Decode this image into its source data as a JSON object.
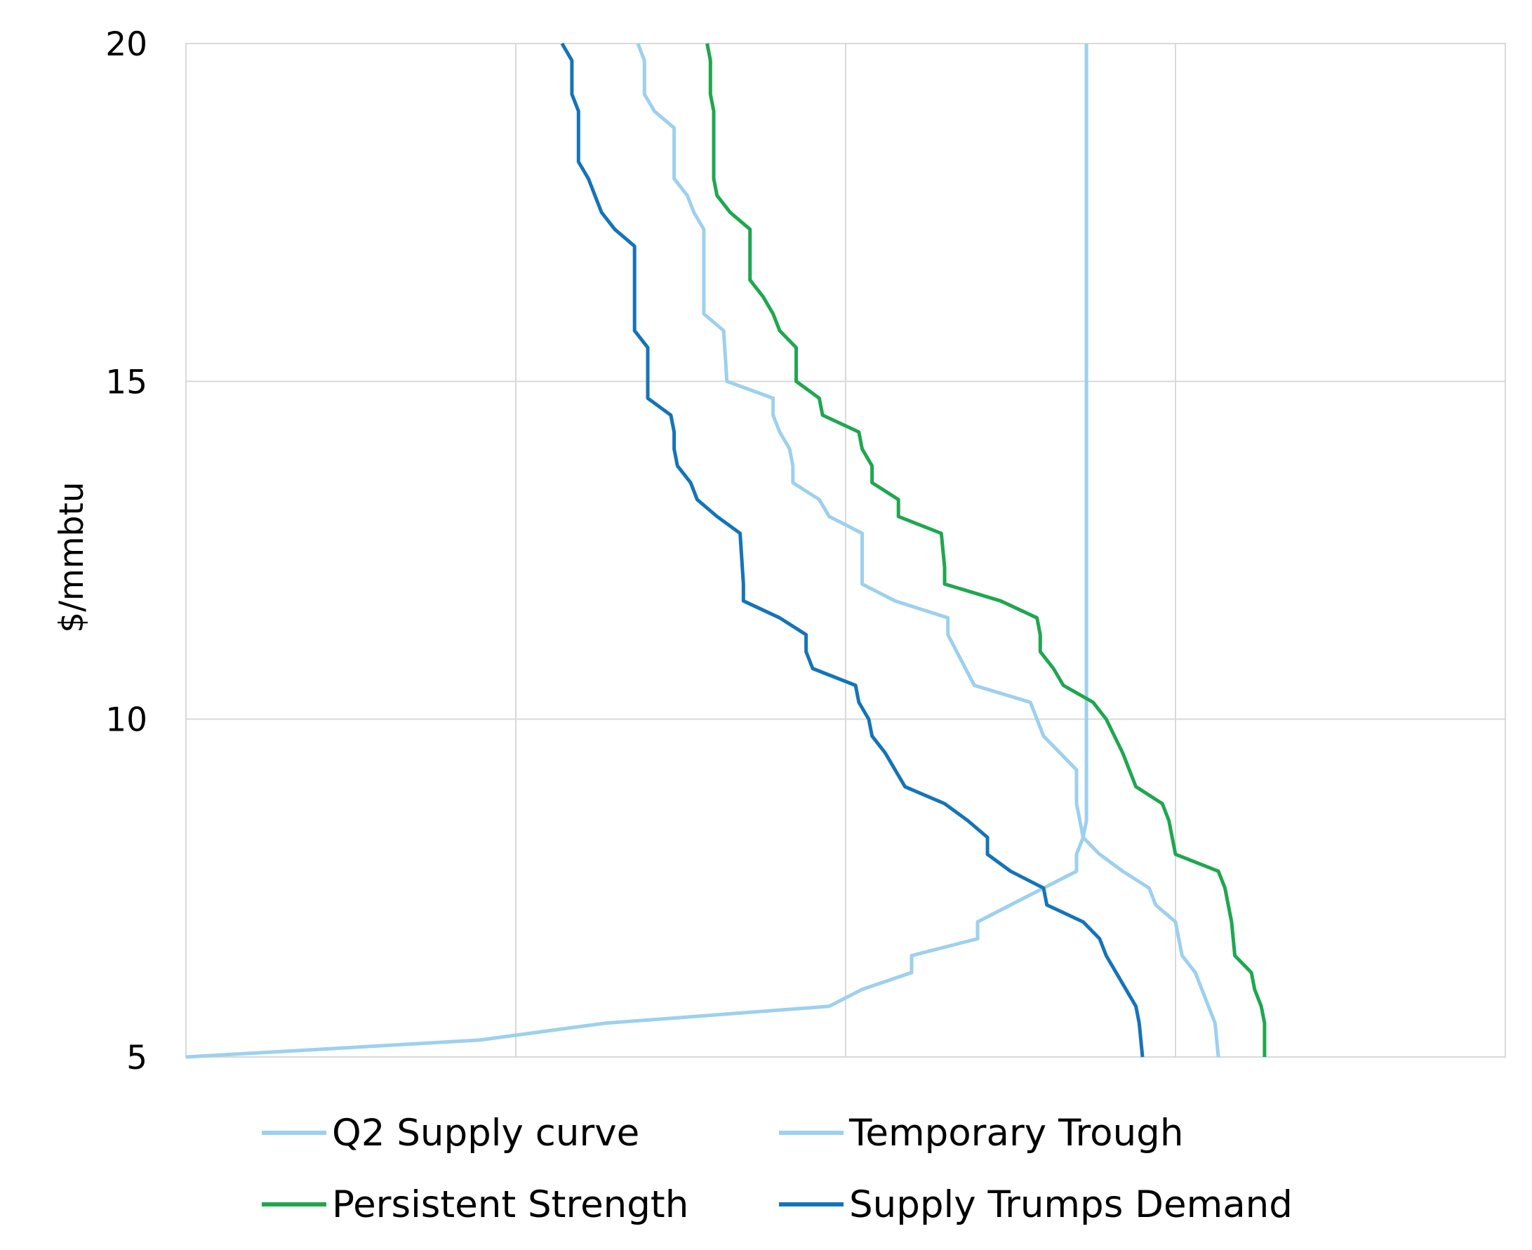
{
  "chart_data": {
    "type": "line",
    "title": "",
    "xlabel": "",
    "ylabel": "$/mmbtu",
    "ylim": [
      5,
      20
    ],
    "y_ticks": [
      "5",
      "10",
      "15",
      "20"
    ],
    "x_range": [
      0,
      4
    ],
    "x_ticks_labeled": false,
    "grid": true,
    "legend_position": "bottom",
    "series": [
      {
        "name": "Q2 Supply curve",
        "color": "#9DD0EE",
        "points": [
          [
            0.0,
            5.0
          ],
          [
            0.89,
            5.25
          ],
          [
            1.27,
            5.5
          ],
          [
            1.95,
            5.75
          ],
          [
            2.05,
            6.0
          ],
          [
            2.2,
            6.25
          ],
          [
            2.2,
            6.5
          ],
          [
            2.4,
            6.75
          ],
          [
            2.4,
            7.0
          ],
          [
            2.5,
            7.25
          ],
          [
            2.6,
            7.5
          ],
          [
            2.7,
            7.75
          ],
          [
            2.7,
            8.0
          ],
          [
            2.72,
            8.25
          ],
          [
            2.73,
            8.5
          ],
          [
            2.73,
            20.0
          ]
        ]
      },
      {
        "name": "Temporary Trough",
        "color": "#9DD0EE",
        "points": [
          [
            3.13,
            5.0
          ],
          [
            3.12,
            5.5
          ],
          [
            3.1,
            5.75
          ],
          [
            3.08,
            6.0
          ],
          [
            3.06,
            6.25
          ],
          [
            3.02,
            6.5
          ],
          [
            3.0,
            7.0
          ],
          [
            2.94,
            7.25
          ],
          [
            2.92,
            7.5
          ],
          [
            2.84,
            7.75
          ],
          [
            2.77,
            8.0
          ],
          [
            2.72,
            8.25
          ],
          [
            2.7,
            8.75
          ],
          [
            2.7,
            9.25
          ],
          [
            2.6,
            9.75
          ],
          [
            2.56,
            10.25
          ],
          [
            2.39,
            10.5
          ],
          [
            2.31,
            11.25
          ],
          [
            2.31,
            11.5
          ],
          [
            2.15,
            11.75
          ],
          [
            2.05,
            12.0
          ],
          [
            2.05,
            12.75
          ],
          [
            1.95,
            13.0
          ],
          [
            1.92,
            13.25
          ],
          [
            1.84,
            13.5
          ],
          [
            1.84,
            13.75
          ],
          [
            1.83,
            14.0
          ],
          [
            1.8,
            14.25
          ],
          [
            1.78,
            14.5
          ],
          [
            1.78,
            14.75
          ],
          [
            1.64,
            15.0
          ],
          [
            1.63,
            15.75
          ],
          [
            1.57,
            16.0
          ],
          [
            1.57,
            17.25
          ],
          [
            1.54,
            17.5
          ],
          [
            1.52,
            17.75
          ],
          [
            1.48,
            18.0
          ],
          [
            1.48,
            18.75
          ],
          [
            1.42,
            19.0
          ],
          [
            1.39,
            19.25
          ],
          [
            1.39,
            19.75
          ],
          [
            1.37,
            20.0
          ]
        ]
      },
      {
        "name": "Persistent Strength",
        "color": "#1FA74F",
        "points": [
          [
            3.27,
            5.0
          ],
          [
            3.27,
            5.5
          ],
          [
            3.26,
            5.75
          ],
          [
            3.24,
            6.0
          ],
          [
            3.23,
            6.25
          ],
          [
            3.18,
            6.5
          ],
          [
            3.17,
            7.0
          ],
          [
            3.16,
            7.25
          ],
          [
            3.15,
            7.5
          ],
          [
            3.13,
            7.75
          ],
          [
            3.0,
            8.0
          ],
          [
            2.99,
            8.25
          ],
          [
            2.98,
            8.5
          ],
          [
            2.96,
            8.75
          ],
          [
            2.88,
            9.0
          ],
          [
            2.86,
            9.25
          ],
          [
            2.84,
            9.5
          ],
          [
            2.79,
            10.0
          ],
          [
            2.75,
            10.25
          ],
          [
            2.66,
            10.5
          ],
          [
            2.63,
            10.75
          ],
          [
            2.59,
            11.0
          ],
          [
            2.59,
            11.25
          ],
          [
            2.58,
            11.5
          ],
          [
            2.47,
            11.75
          ],
          [
            2.3,
            12.0
          ],
          [
            2.3,
            12.25
          ],
          [
            2.29,
            12.75
          ],
          [
            2.16,
            13.0
          ],
          [
            2.16,
            13.25
          ],
          [
            2.08,
            13.5
          ],
          [
            2.08,
            13.75
          ],
          [
            2.05,
            14.0
          ],
          [
            2.04,
            14.25
          ],
          [
            1.93,
            14.5
          ],
          [
            1.92,
            14.75
          ],
          [
            1.85,
            15.0
          ],
          [
            1.85,
            15.5
          ],
          [
            1.8,
            15.75
          ],
          [
            1.78,
            16.0
          ],
          [
            1.75,
            16.25
          ],
          [
            1.71,
            16.5
          ],
          [
            1.71,
            17.25
          ],
          [
            1.65,
            17.5
          ],
          [
            1.61,
            17.75
          ],
          [
            1.6,
            18.0
          ],
          [
            1.6,
            19.0
          ],
          [
            1.59,
            19.25
          ],
          [
            1.59,
            19.75
          ],
          [
            1.58,
            20.0
          ]
        ]
      },
      {
        "name": "Supply Trumps Demand",
        "color": "#1474B9",
        "points": [
          [
            2.9,
            5.0
          ],
          [
            2.89,
            5.5
          ],
          [
            2.88,
            5.75
          ],
          [
            2.85,
            6.0
          ],
          [
            2.82,
            6.25
          ],
          [
            2.79,
            6.5
          ],
          [
            2.77,
            6.75
          ],
          [
            2.72,
            7.0
          ],
          [
            2.61,
            7.25
          ],
          [
            2.6,
            7.5
          ],
          [
            2.5,
            7.75
          ],
          [
            2.43,
            8.0
          ],
          [
            2.43,
            8.25
          ],
          [
            2.37,
            8.5
          ],
          [
            2.3,
            8.75
          ],
          [
            2.18,
            9.0
          ],
          [
            2.15,
            9.25
          ],
          [
            2.12,
            9.5
          ],
          [
            2.08,
            9.75
          ],
          [
            2.07,
            10.0
          ],
          [
            2.04,
            10.25
          ],
          [
            2.03,
            10.5
          ],
          [
            1.9,
            10.75
          ],
          [
            1.88,
            11.0
          ],
          [
            1.88,
            11.25
          ],
          [
            1.8,
            11.5
          ],
          [
            1.69,
            11.75
          ],
          [
            1.69,
            12.0
          ],
          [
            1.68,
            12.75
          ],
          [
            1.61,
            13.0
          ],
          [
            1.55,
            13.25
          ],
          [
            1.53,
            13.5
          ],
          [
            1.49,
            13.75
          ],
          [
            1.48,
            14.0
          ],
          [
            1.48,
            14.25
          ],
          [
            1.47,
            14.5
          ],
          [
            1.4,
            14.75
          ],
          [
            1.4,
            15.0
          ],
          [
            1.4,
            15.5
          ],
          [
            1.36,
            15.75
          ],
          [
            1.36,
            16.0
          ],
          [
            1.36,
            17.0
          ],
          [
            1.3,
            17.25
          ],
          [
            1.26,
            17.5
          ],
          [
            1.24,
            17.75
          ],
          [
            1.22,
            18.0
          ],
          [
            1.19,
            18.25
          ],
          [
            1.19,
            19.0
          ],
          [
            1.17,
            19.25
          ],
          [
            1.17,
            19.75
          ],
          [
            1.14,
            20.0
          ]
        ]
      }
    ]
  }
}
